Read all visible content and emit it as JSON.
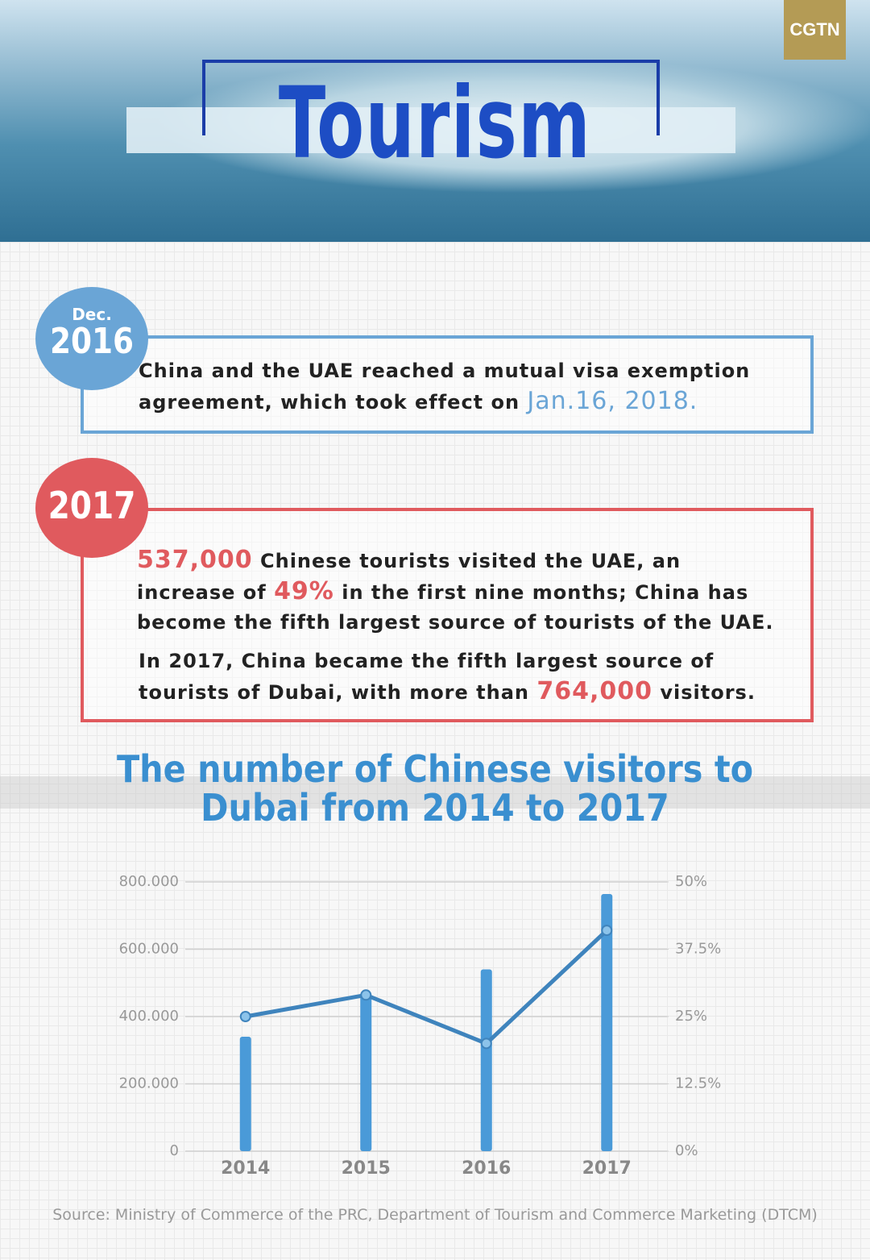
{
  "header": {
    "title": "Tourism",
    "logo": "CGTN"
  },
  "timeline": [
    {
      "badge_top": "Dec.",
      "badge_year": "2016",
      "text": [
        "China and the UAE reached a mutual visa exemption agreement, which took effect on ",
        "Jan.16, 2018."
      ]
    },
    {
      "badge_year": "2017",
      "paragraphs": [
        [
          "537,000",
          " Chinese tourists visited the UAE, an increase of ",
          "49%",
          " in the first nine months; China has become the fifth largest source of tourists of the UAE."
        ],
        [
          "In 2017, China became the fifth largest source of tourists of Dubai, with more than ",
          "764,000",
          " visitors."
        ]
      ]
    }
  ],
  "chart_data": {
    "type": "bar",
    "title": "The number of Chinese visitors to Dubai from 2014 to 2017",
    "categories": [
      "2014",
      "2015",
      "2016",
      "2017"
    ],
    "series": [
      {
        "type": "bar",
        "color": "#4a9ad8",
        "values": [
          340000,
          470000,
          540000,
          764000
        ]
      },
      {
        "type": "line",
        "color": "#3f84bd",
        "axis": "y2",
        "values": [
          25,
          29,
          20,
          41
        ]
      }
    ],
    "ylim": [
      0,
      800000
    ],
    "yticks": [
      0,
      {
        "value": 200000,
        "label": "200.000"
      },
      {
        "value": 400000,
        "label": "400.000"
      },
      {
        "value": 600000,
        "label": "600.000"
      },
      {
        "value": 800000,
        "label": "800.000"
      }
    ],
    "y2lim": [
      0,
      50
    ],
    "y2ticks": [
      {
        "value": 0,
        "label": "0%"
      },
      {
        "value": 12.5,
        "label": "12.5%"
      },
      {
        "value": 25,
        "label": "25%"
      },
      {
        "value": 37.5,
        "label": "37.5%"
      },
      {
        "value": 50,
        "label": "50%"
      }
    ],
    "grid": true
  },
  "source": "Source: Ministry of Commerce of the PRC, Department of Tourism and Commerce Marketing (DTCM)"
}
